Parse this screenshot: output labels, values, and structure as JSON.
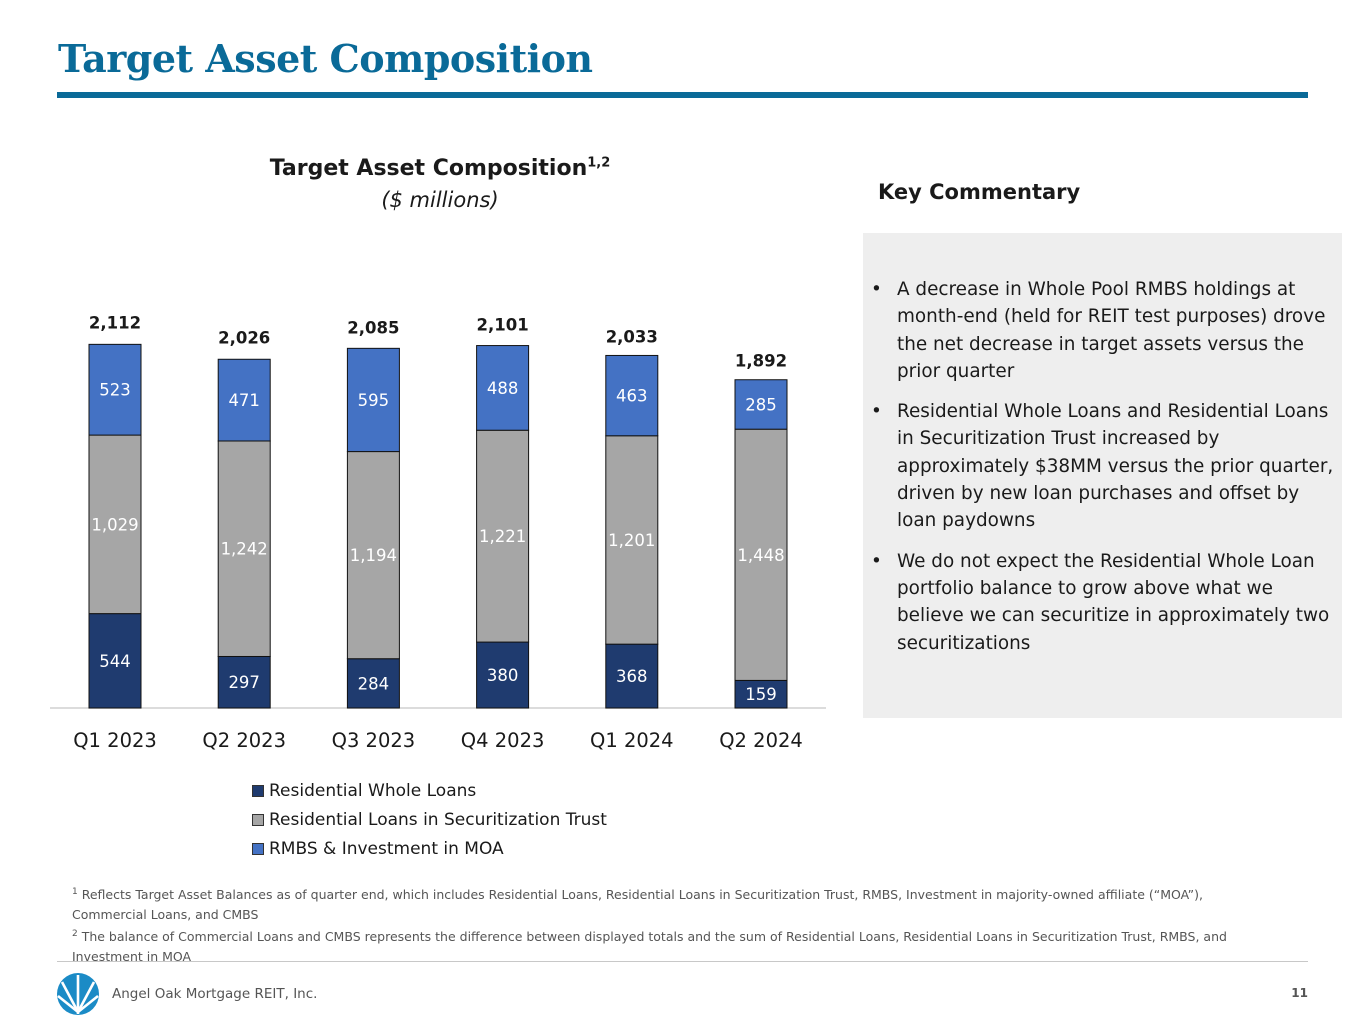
{
  "page": {
    "title": "Target Asset Composition",
    "company": "Angel Oak Mortgage REIT, Inc.",
    "page_number": "11"
  },
  "chart_data": {
    "type": "bar",
    "stacked": true,
    "title": "Target Asset Composition",
    "title_superscript": "1,2",
    "subtitle": "($ millions)",
    "categories": [
      "Q1 2023",
      "Q2 2023",
      "Q3 2023",
      "Q4 2023",
      "Q1 2024",
      "Q2 2024"
    ],
    "series": [
      {
        "name": "Residential Whole Loans",
        "color": "#1f3b6f",
        "values": [
          544,
          297,
          284,
          380,
          368,
          159
        ],
        "labels": [
          "544",
          "297",
          "284",
          "380",
          "368",
          "159"
        ]
      },
      {
        "name": "Residential Loans in Securitization Trust",
        "color": "#a6a6a6",
        "values": [
          1029,
          1242,
          1194,
          1221,
          1201,
          1448
        ],
        "labels": [
          "1,029",
          "1,242",
          "1,194",
          "1,221",
          "1,201",
          "1,448"
        ]
      },
      {
        "name": "RMBS & Investment in MOA",
        "color": "#4472c4",
        "values": [
          523,
          471,
          595,
          488,
          463,
          285
        ],
        "labels": [
          "523",
          "471",
          "595",
          "488",
          "463",
          "285"
        ]
      }
    ],
    "totals": [
      2112,
      2026,
      2085,
      2101,
      2033,
      1892
    ],
    "total_labels": [
      "2,112",
      "2,026",
      "2,085",
      "2,101",
      "2,033",
      "1,892"
    ],
    "legend_position": "bottom",
    "grid": false
  },
  "commentary": {
    "title": "Key Commentary",
    "bullet_symbol": "•",
    "bullets": [
      "A decrease in Whole Pool RMBS holdings at month-end (held for REIT test purposes) drove the net decrease in target assets versus the prior quarter",
      "Residential Whole Loans and Residential Loans in Securitization Trust increased by approximately $38MM versus the prior quarter, driven by new loan purchases and offset by loan paydowns",
      "We do not expect the Residential Whole Loan portfolio balance to grow above what we believe we can securitize in approximately two securitizations"
    ]
  },
  "footnotes": [
    {
      "mark": "1",
      "text": " Reflects Target Asset Balances as of quarter end, which includes Residential Loans, Residential Loans in Securitization Trust, RMBS, Investment in majority-owned affiliate (“MOA”), Commercial Loans, and CMBS"
    },
    {
      "mark": "2",
      "text": " The balance of Commercial Loans and CMBS represents the difference between displayed totals and the sum of Residential Loans, Residential Loans in Securitization Trust, RMBS, and Investment in MOA"
    }
  ]
}
